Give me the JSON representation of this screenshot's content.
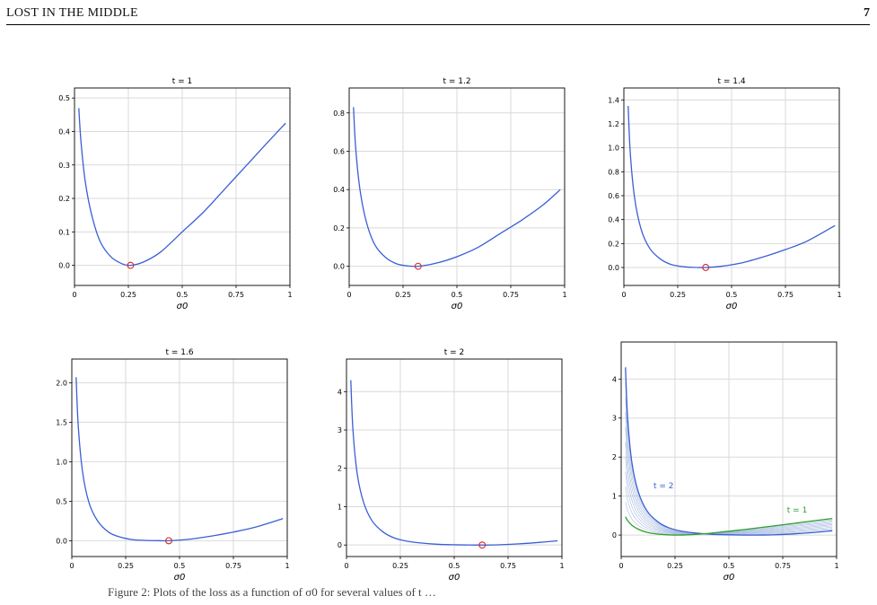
{
  "running_head": {
    "title": "LOST IN THE MIDDLE",
    "page": "7"
  },
  "colors": {
    "curve": "#3a5fd4",
    "marker": "#d62728",
    "green": "#2ca02c",
    "family": "#9fb4dd",
    "grid": "#d9d9d9"
  },
  "chart_data": [
    {
      "type": "line",
      "title": "t = 1",
      "xlabel": "σ0",
      "ylim": [
        -0.06,
        0.53
      ],
      "yticks": [
        "0.0",
        "0.1",
        "0.2",
        "0.3",
        "0.4",
        "0.5"
      ],
      "ytick_values": [
        0,
        0.1,
        0.2,
        0.3,
        0.4,
        0.5
      ],
      "xticks": [
        "0",
        "0.25",
        "0.5",
        "0.75",
        "1"
      ],
      "series": [
        {
          "x": [
            0.02,
            0.03,
            0.05,
            0.08,
            0.12,
            0.17,
            0.22,
            0.26,
            0.32,
            0.4,
            0.5,
            0.6,
            0.7,
            0.8,
            0.9,
            0.98
          ],
          "y": [
            0.47,
            0.37,
            0.25,
            0.15,
            0.07,
            0.025,
            0.005,
            0,
            0.01,
            0.04,
            0.1,
            0.16,
            0.23,
            0.3,
            0.37,
            0.425
          ]
        }
      ],
      "minimum": {
        "x": 0.26,
        "y": 0
      }
    },
    {
      "type": "line",
      "title": "t = 1.2",
      "xlabel": "σ0",
      "ylim": [
        -0.1,
        0.93
      ],
      "yticks": [
        "0.0",
        "0.2",
        "0.4",
        "0.6",
        "0.8"
      ],
      "ytick_values": [
        0,
        0.2,
        0.4,
        0.6,
        0.8
      ],
      "xticks": [
        "0",
        "0.25",
        "0.5",
        "0.75",
        "1"
      ],
      "series": [
        {
          "x": [
            0.02,
            0.03,
            0.05,
            0.08,
            0.12,
            0.17,
            0.22,
            0.27,
            0.32,
            0.4,
            0.5,
            0.6,
            0.7,
            0.8,
            0.9,
            0.98
          ],
          "y": [
            0.83,
            0.62,
            0.4,
            0.23,
            0.11,
            0.045,
            0.013,
            0.002,
            0,
            0.015,
            0.05,
            0.1,
            0.17,
            0.24,
            0.32,
            0.4
          ]
        }
      ],
      "minimum": {
        "x": 0.32,
        "y": 0
      }
    },
    {
      "type": "line",
      "title": "t = 1.4",
      "xlabel": "σ0",
      "ylim": [
        -0.15,
        1.5
      ],
      "yticks": [
        "0.0",
        "0.2",
        "0.4",
        "0.6",
        "0.8",
        "1.0",
        "1.2",
        "1.4"
      ],
      "ytick_values": [
        0,
        0.2,
        0.4,
        0.6,
        0.8,
        1.0,
        1.2,
        1.4
      ],
      "xticks": [
        "0",
        "0.25",
        "0.5",
        "0.75",
        "1"
      ],
      "series": [
        {
          "x": [
            0.02,
            0.03,
            0.05,
            0.08,
            0.12,
            0.17,
            0.22,
            0.28,
            0.33,
            0.38,
            0.45,
            0.55,
            0.65,
            0.75,
            0.85,
            0.98
          ],
          "y": [
            1.35,
            0.95,
            0.58,
            0.32,
            0.16,
            0.07,
            0.025,
            0.006,
            0.001,
            0,
            0.01,
            0.04,
            0.09,
            0.15,
            0.22,
            0.35
          ]
        }
      ],
      "minimum": {
        "x": 0.38,
        "y": 0
      }
    },
    {
      "type": "line",
      "title": "t = 1.6",
      "xlabel": "σ0",
      "ylim": [
        -0.2,
        2.3
      ],
      "yticks": [
        "0.0",
        "0.5",
        "1.0",
        "1.5",
        "2.0"
      ],
      "ytick_values": [
        0,
        0.5,
        1.0,
        1.5,
        2.0
      ],
      "xticks": [
        "0",
        "0.25",
        "0.5",
        "0.75",
        "1"
      ],
      "series": [
        {
          "x": [
            0.02,
            0.03,
            0.05,
            0.08,
            0.12,
            0.17,
            0.22,
            0.28,
            0.34,
            0.4,
            0.45,
            0.55,
            0.65,
            0.75,
            0.85,
            0.98
          ],
          "y": [
            2.07,
            1.45,
            0.87,
            0.48,
            0.25,
            0.11,
            0.05,
            0.015,
            0.004,
            0.001,
            0,
            0.02,
            0.06,
            0.11,
            0.17,
            0.28
          ]
        }
      ],
      "minimum": {
        "x": 0.45,
        "y": 0
      }
    },
    {
      "type": "line",
      "title": "t = 2",
      "xlabel": "σ0",
      "ylim": [
        -0.3,
        4.85
      ],
      "yticks": [
        "0",
        "1",
        "2",
        "3",
        "4"
      ],
      "ytick_values": [
        0,
        1,
        2,
        3,
        4
      ],
      "xticks": [
        "0",
        "0.25",
        "0.5",
        "0.75",
        "1"
      ],
      "series": [
        {
          "x": [
            0.02,
            0.03,
            0.05,
            0.08,
            0.12,
            0.17,
            0.22,
            0.28,
            0.35,
            0.42,
            0.5,
            0.57,
            0.63,
            0.7,
            0.8,
            0.9,
            0.98
          ],
          "y": [
            4.3,
            3.0,
            1.85,
            1.1,
            0.62,
            0.34,
            0.19,
            0.1,
            0.05,
            0.02,
            0.007,
            0.001,
            0,
            0.005,
            0.03,
            0.07,
            0.11
          ]
        }
      ],
      "minimum": {
        "x": 0.63,
        "y": 0
      }
    },
    {
      "type": "line",
      "title": "",
      "xlabel": "σ0",
      "ylim": [
        -0.55,
        4.95
      ],
      "yticks": [
        "0",
        "1",
        "2",
        "3",
        "4"
      ],
      "ytick_values": [
        0,
        1,
        2,
        3,
        4
      ],
      "xticks": [
        "0",
        "0.25",
        "0.5",
        "0.75",
        "1"
      ],
      "annotations": [
        {
          "text": "t = 2",
          "x": 0.15,
          "y": 1.2
        },
        {
          "text": "t = 1",
          "x": 0.77,
          "y": 0.58
        }
      ],
      "series": [
        {
          "x": [
            0.02,
            0.03,
            0.05,
            0.08,
            0.12,
            0.17,
            0.22,
            0.28,
            0.35,
            0.42,
            0.5,
            0.57,
            0.63,
            0.7,
            0.8,
            0.9,
            0.98
          ],
          "y": [
            4.3,
            3.0,
            1.85,
            1.1,
            0.62,
            0.34,
            0.19,
            0.1,
            0.05,
            0.02,
            0.007,
            0.001,
            0,
            0.005,
            0.03,
            0.07,
            0.11
          ],
          "color": "blue"
        },
        {
          "x": [
            0.02,
            0.03,
            0.05,
            0.08,
            0.12,
            0.17,
            0.22,
            0.26,
            0.32,
            0.4,
            0.5,
            0.6,
            0.7,
            0.8,
            0.9,
            0.98
          ],
          "y": [
            0.47,
            0.37,
            0.25,
            0.15,
            0.07,
            0.025,
            0.005,
            0,
            0.01,
            0.04,
            0.1,
            0.16,
            0.23,
            0.3,
            0.37,
            0.425
          ],
          "color": "green"
        }
      ],
      "family_count": 9
    }
  ],
  "caption": "Figure 2: Plots of the loss as a function of σ0 for several values of t …"
}
